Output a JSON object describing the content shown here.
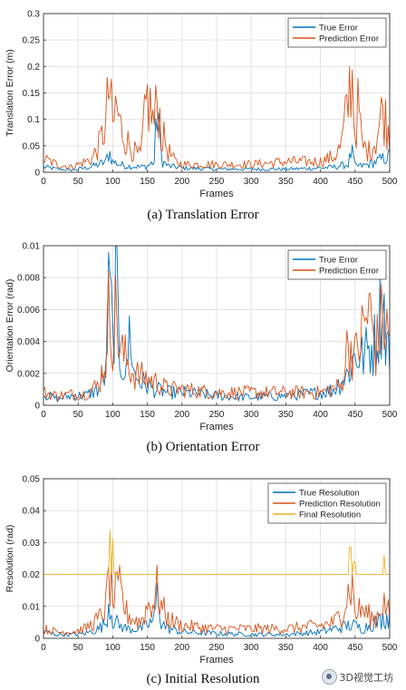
{
  "colors": {
    "true": "#0072bd",
    "pred": "#d95319",
    "final": "#edb120"
  },
  "watermark": "3D视觉工坊",
  "chart_data": [
    {
      "type": "line",
      "caption": "(a)  Translation Error",
      "xlabel": "Frames",
      "ylabel": "Translation Error (m)",
      "xlim": [
        0,
        500
      ],
      "ylim": [
        0,
        0.3
      ],
      "xticks": [
        "0",
        "50",
        "100",
        "150",
        "200",
        "250",
        "300",
        "350",
        "400",
        "450",
        "500"
      ],
      "yticks": [
        "0",
        "0.05",
        "0.1",
        "0.15",
        "0.2",
        "0.25",
        "0.3"
      ],
      "grid": true,
      "legend_position": "top-right",
      "series": [
        {
          "name": "True Error",
          "color_key": "true",
          "x": [
            0,
            20,
            40,
            60,
            80,
            90,
            95,
            100,
            110,
            120,
            140,
            150,
            160,
            165,
            168,
            172,
            180,
            200,
            250,
            300,
            350,
            400,
            420,
            440,
            445,
            450,
            460,
            470,
            480,
            490,
            500
          ],
          "y": [
            0.01,
            0.006,
            0.004,
            0.008,
            0.015,
            0.02,
            0.04,
            0.02,
            0.015,
            0.012,
            0.01,
            0.012,
            0.02,
            0.14,
            0.05,
            0.02,
            0.012,
            0.008,
            0.006,
            0.006,
            0.006,
            0.008,
            0.01,
            0.015,
            0.04,
            0.012,
            0.012,
            0.015,
            0.02,
            0.025,
            0.03
          ]
        },
        {
          "name": "Prediction Error",
          "color_key": "pred",
          "x": [
            0,
            20,
            40,
            60,
            70,
            80,
            90,
            95,
            100,
            105,
            110,
            120,
            130,
            140,
            150,
            160,
            165,
            170,
            175,
            180,
            190,
            200,
            250,
            300,
            350,
            400,
            420,
            430,
            440,
            445,
            450,
            455,
            460,
            470,
            480,
            490,
            500
          ],
          "y": [
            0.025,
            0.015,
            0.01,
            0.02,
            0.025,
            0.05,
            0.09,
            0.17,
            0.08,
            0.13,
            0.09,
            0.06,
            0.04,
            0.03,
            0.14,
            0.09,
            0.15,
            0.07,
            0.06,
            0.04,
            0.02,
            0.015,
            0.015,
            0.015,
            0.02,
            0.02,
            0.03,
            0.05,
            0.13,
            0.2,
            0.07,
            0.13,
            0.05,
            0.04,
            0.06,
            0.12,
            0.07
          ]
        }
      ]
    },
    {
      "type": "line",
      "caption": "(b)  Orientation Error",
      "xlabel": "Frames",
      "ylabel": "Orientation Error (rad)",
      "xlim": [
        0,
        500
      ],
      "ylim": [
        0,
        0.01
      ],
      "xticks": [
        "0",
        "50",
        "100",
        "150",
        "200",
        "250",
        "300",
        "350",
        "400",
        "450",
        "500"
      ],
      "yticks": [
        "0",
        "0.002",
        "0.004",
        "0.006",
        "0.008",
        "0.01"
      ],
      "grid": true,
      "legend_position": "top-right",
      "series": [
        {
          "name": "True Error",
          "color_key": "true",
          "x": [
            0,
            20,
            40,
            60,
            80,
            90,
            95,
            100,
            105,
            110,
            120,
            125,
            130,
            140,
            160,
            180,
            200,
            250,
            300,
            350,
            400,
            420,
            440,
            450,
            460,
            470,
            480,
            490,
            495,
            500
          ],
          "y": [
            0.0007,
            0.0004,
            0.0006,
            0.0006,
            0.001,
            0.002,
            0.0078,
            0.004,
            0.0077,
            0.003,
            0.002,
            0.0052,
            0.002,
            0.0015,
            0.001,
            0.0008,
            0.0008,
            0.0006,
            0.0005,
            0.0006,
            0.0008,
            0.001,
            0.002,
            0.0032,
            0.003,
            0.0035,
            0.004,
            0.0068,
            0.0044,
            0.003
          ]
        },
        {
          "name": "Prediction Error",
          "color_key": "pred",
          "x": [
            0,
            20,
            40,
            60,
            80,
            90,
            95,
            100,
            105,
            110,
            120,
            130,
            140,
            160,
            180,
            200,
            250,
            300,
            350,
            400,
            430,
            440,
            450,
            460,
            470,
            480,
            490,
            500
          ],
          "y": [
            0.0008,
            0.0006,
            0.0007,
            0.0007,
            0.0013,
            0.003,
            0.0065,
            0.0045,
            0.006,
            0.0035,
            0.0028,
            0.002,
            0.0018,
            0.0015,
            0.001,
            0.001,
            0.0008,
            0.0008,
            0.0008,
            0.0008,
            0.0012,
            0.004,
            0.003,
            0.0045,
            0.006,
            0.0035,
            0.0055,
            0.004
          ]
        }
      ]
    },
    {
      "type": "line",
      "caption": "(c)  Initial Resolution",
      "xlabel": "Frames",
      "ylabel": "Resolution (rad)",
      "xlim": [
        0,
        500
      ],
      "ylim": [
        0,
        0.05
      ],
      "xticks": [
        "0",
        "50",
        "100",
        "150",
        "200",
        "250",
        "300",
        "350",
        "400",
        "450",
        "500"
      ],
      "yticks": [
        "0",
        "0.01",
        "0.02",
        "0.03",
        "0.04",
        "0.05"
      ],
      "grid": true,
      "legend_position": "top-right",
      "series": [
        {
          "name": "True Resolution",
          "color_key": "true",
          "x": [
            0,
            20,
            40,
            60,
            80,
            90,
            95,
            100,
            110,
            120,
            140,
            150,
            160,
            165,
            170,
            180,
            200,
            250,
            300,
            350,
            400,
            420,
            440,
            450,
            460,
            470,
            480,
            490,
            500
          ],
          "y": [
            0.002,
            0.0012,
            0.0012,
            0.0015,
            0.003,
            0.005,
            0.012,
            0.006,
            0.004,
            0.003,
            0.003,
            0.004,
            0.006,
            0.015,
            0.005,
            0.003,
            0.002,
            0.0015,
            0.0012,
            0.0012,
            0.002,
            0.003,
            0.004,
            0.004,
            0.003,
            0.004,
            0.005,
            0.006,
            0.007
          ]
        },
        {
          "name": "Prediction Resolution",
          "color_key": "pred",
          "x": [
            0,
            20,
            40,
            60,
            80,
            90,
            95,
            100,
            110,
            120,
            130,
            140,
            150,
            160,
            165,
            170,
            180,
            200,
            250,
            300,
            350,
            400,
            420,
            430,
            440,
            445,
            450,
            460,
            470,
            480,
            490,
            500
          ],
          "y": [
            0.003,
            0.002,
            0.002,
            0.003,
            0.006,
            0.01,
            0.02,
            0.012,
            0.015,
            0.008,
            0.006,
            0.005,
            0.01,
            0.012,
            0.016,
            0.01,
            0.006,
            0.004,
            0.003,
            0.003,
            0.003,
            0.004,
            0.005,
            0.008,
            0.014,
            0.018,
            0.008,
            0.009,
            0.007,
            0.006,
            0.012,
            0.007
          ]
        },
        {
          "name": "Final Resolution",
          "color_key": "final",
          "x": [
            0,
            94,
            96,
            98,
            100,
            102,
            104,
            130,
            131,
            132,
            154,
            155,
            156,
            164,
            165,
            166,
            440,
            443,
            446,
            449,
            452,
            455,
            490,
            492,
            494,
            496,
            500
          ],
          "y": [
            0.02,
            0.02,
            0.034,
            0.02,
            0.031,
            0.02,
            0.02,
            0.02,
            0.021,
            0.02,
            0.02,
            0.025,
            0.02,
            0.02,
            0.025,
            0.02,
            0.02,
            0.033,
            0.02,
            0.026,
            0.02,
            0.02,
            0.02,
            0.026,
            0.02,
            0.02,
            0.02
          ]
        }
      ]
    }
  ]
}
